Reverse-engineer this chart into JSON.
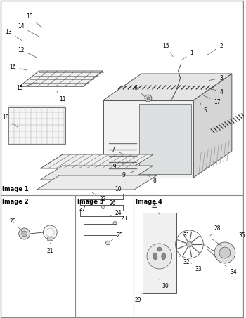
{
  "title": "",
  "bg_color": "#ffffff",
  "line_color": "#555555",
  "text_color": "#000000",
  "fig_width": 3.5,
  "fig_height": 4.53,
  "dpi": 100,
  "image1_label": "Image 1",
  "image2_label": "Image 2",
  "image3_label": "Image 3",
  "image4_label": "Image 4"
}
